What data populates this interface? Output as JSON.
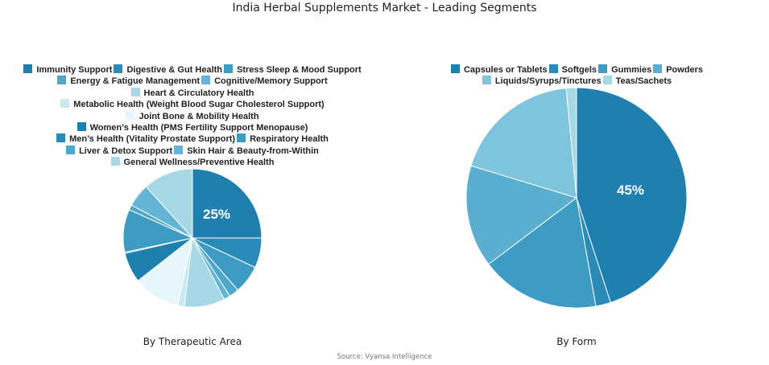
{
  "title": "India Herbal Supplements Market - Leading Segments",
  "source": "Source: Vyansa Intelligence",
  "chart_data": [
    {
      "type": "pie",
      "title": "By Therapeutic Area",
      "start_angle_deg": 0,
      "direction": "clockwise",
      "label_shown": "25%",
      "categories": [
        "Immunity Support",
        "Digestive & Gut Health",
        "Stress Sleep & Mood Support",
        "Energy & Fatigue Management",
        "Cognitive/Memory Support",
        "Heart & Circulatory Health",
        "Metabolic Health (Weight Blood Sugar Cholesterol Support)",
        "Joint Bone & Mobility Health",
        "Women’s Health (PMS Fertility Support Menopause)",
        "Men’s Health (Vitality Prostate Support)",
        "Respiratory Health",
        "Liver & Detox Support",
        "Skin Hair & Beauty-from-Within",
        "General Wellness/Preventive Health"
      ],
      "values": [
        25,
        7,
        6.6,
        2.3,
        1.5,
        9.5,
        1.5,
        11,
        7,
        0.3,
        10,
        1.2,
        5.4,
        11.7
      ],
      "colors": [
        "#1f80b0",
        "#2a8bb8",
        "#3e9bc4",
        "#4fa6cb",
        "#63b4d5",
        "#a6d8e6",
        "#c9e8f0",
        "#e6f6fa",
        "#1f80b0",
        "#2a8bb8",
        "#3e9bc4",
        "#4fa6cb",
        "#63b4d5",
        "#a6d8e6"
      ],
      "legend_position": "top"
    },
    {
      "type": "pie",
      "title": "By Form",
      "start_angle_deg": 0,
      "direction": "clockwise",
      "label_shown": "45%",
      "categories": [
        "Capsules or Tablets",
        "Softgels",
        "Gummies",
        "Powders",
        "Liquids/Syrups/Tinctures",
        "Teas/Sachets"
      ],
      "values": [
        45,
        2.2,
        17.5,
        15,
        18.8,
        1.5
      ],
      "colors": [
        "#1f80b0",
        "#2a8bb8",
        "#3e9bc4",
        "#5aafd1",
        "#7ec4dd",
        "#a6d8e6"
      ],
      "legend_position": "top"
    }
  ]
}
